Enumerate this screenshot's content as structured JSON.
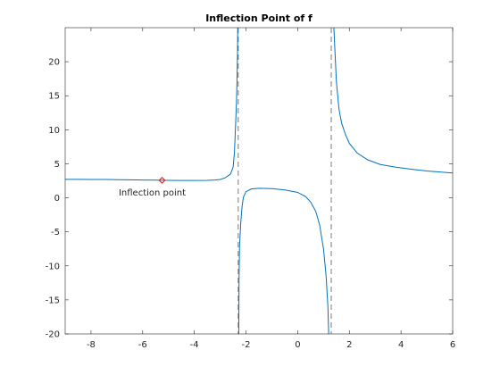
{
  "chart_data": {
    "type": "line",
    "title": "Inflection Point of f",
    "xlabel": "",
    "ylabel": "",
    "xlim": [
      -9,
      6
    ],
    "ylim": [
      -20,
      25
    ],
    "grid": false,
    "x_ticks": [
      -8,
      -6,
      -4,
      -2,
      0,
      2,
      4,
      6
    ],
    "y_ticks": [
      -20,
      -15,
      -10,
      -5,
      0,
      5,
      10,
      15,
      20
    ],
    "asymptotes_x": [
      -2.3,
      1.3
    ],
    "series": [
      {
        "color": "#0072BD",
        "points": [
          [
            -9.0,
            2.72
          ],
          [
            -8.5,
            2.71
          ],
          [
            -8.0,
            2.7
          ],
          [
            -7.5,
            2.69
          ],
          [
            -7.0,
            2.67
          ],
          [
            -6.5,
            2.65
          ],
          [
            -6.0,
            2.62
          ],
          [
            -5.5,
            2.59
          ],
          [
            -5.0,
            2.57
          ],
          [
            -4.5,
            2.55
          ],
          [
            -4.0,
            2.55
          ],
          [
            -3.5,
            2.57
          ],
          [
            -3.2,
            2.62
          ],
          [
            -3.0,
            2.7
          ],
          [
            -2.8,
            2.95
          ],
          [
            -2.6,
            3.5
          ],
          [
            -2.5,
            4.5
          ],
          [
            -2.45,
            6.5
          ],
          [
            -2.4,
            11
          ],
          [
            -2.37,
            14
          ],
          [
            -2.35,
            17
          ],
          [
            -2.33,
            21
          ],
          [
            -2.32,
            25
          ]
        ]
      },
      {
        "color": "#0072BD",
        "points": [
          [
            -2.28,
            -20
          ],
          [
            -2.27,
            -12
          ],
          [
            -2.25,
            -7
          ],
          [
            -2.2,
            -3.5
          ],
          [
            -2.15,
            -1.2
          ],
          [
            -2.1,
            0.1
          ],
          [
            -2.0,
            0.9
          ],
          [
            -1.8,
            1.3
          ],
          [
            -1.5,
            1.4
          ],
          [
            -1.0,
            1.35
          ],
          [
            -0.5,
            1.15
          ],
          [
            0.0,
            0.8
          ],
          [
            0.3,
            0.2
          ],
          [
            0.5,
            -0.6
          ],
          [
            0.7,
            -2.0
          ],
          [
            0.85,
            -4.0
          ],
          [
            1.0,
            -7.5
          ],
          [
            1.1,
            -11.5
          ],
          [
            1.17,
            -16
          ],
          [
            1.2,
            -20
          ]
        ]
      },
      {
        "color": "#0072BD",
        "points": [
          [
            1.4,
            25
          ],
          [
            1.45,
            21
          ],
          [
            1.5,
            17
          ],
          [
            1.6,
            13
          ],
          [
            1.7,
            11
          ],
          [
            1.85,
            9.3
          ],
          [
            2.0,
            8.0
          ],
          [
            2.3,
            6.6
          ],
          [
            2.7,
            5.6
          ],
          [
            3.2,
            4.9
          ],
          [
            3.8,
            4.5
          ],
          [
            4.5,
            4.15
          ],
          [
            5.0,
            3.95
          ],
          [
            5.5,
            3.8
          ],
          [
            6.0,
            3.65
          ]
        ]
      }
    ],
    "marker": {
      "x": -5.25,
      "y": 2.58,
      "label": "Inflection point",
      "color": "#FF0000"
    }
  }
}
